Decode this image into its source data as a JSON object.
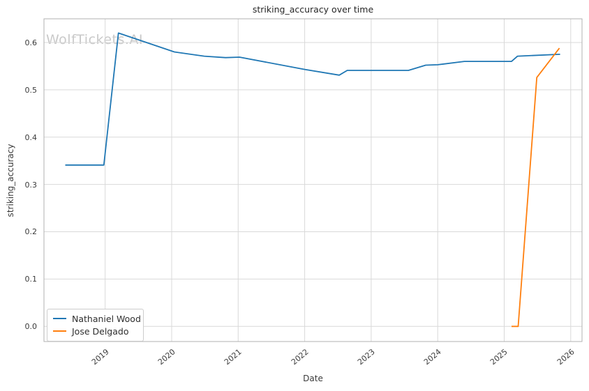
{
  "watermark": "WolfTickets.AI",
  "colors": {
    "series_blue": "#1f77b4",
    "series_orange": "#ff7f0e",
    "grid": "#d9d9d9",
    "spine": "#b0b0b0",
    "watermark": "#c9c9c9",
    "background": "#ffffff"
  },
  "chart_data": {
    "type": "line",
    "title": "striking_accuracy over time",
    "xlabel": "Date",
    "ylabel": "striking_accuracy",
    "grid": true,
    "legend_position": "lower left",
    "xlim": [
      2018.08,
      2026.17
    ],
    "ylim": [
      -0.032,
      0.65
    ],
    "x_ticks": [
      2019,
      2020,
      2021,
      2022,
      2023,
      2024,
      2025,
      2026
    ],
    "y_ticks": [
      0.0,
      0.1,
      0.2,
      0.3,
      0.4,
      0.5,
      0.6
    ],
    "series": [
      {
        "name": "Nathaniel Wood",
        "color": "#1f77b4",
        "x": [
          2018.4,
          2018.98,
          2019.2,
          2020.04,
          2020.49,
          2020.81,
          2021.02,
          2022.0,
          2022.52,
          2022.64,
          2023.56,
          2023.82,
          2024.0,
          2024.4,
          2025.11,
          2025.2,
          2025.84
        ],
        "y": [
          0.341,
          0.341,
          0.62,
          0.58,
          0.571,
          0.568,
          0.569,
          0.543,
          0.531,
          0.541,
          0.541,
          0.552,
          0.553,
          0.56,
          0.56,
          0.571,
          0.575
        ]
      },
      {
        "name": "Jose Delgado",
        "color": "#ff7f0e",
        "x": [
          2025.11,
          2025.21,
          2025.49,
          2025.83
        ],
        "y": [
          0.0,
          0.0,
          0.526,
          0.588
        ]
      }
    ]
  }
}
